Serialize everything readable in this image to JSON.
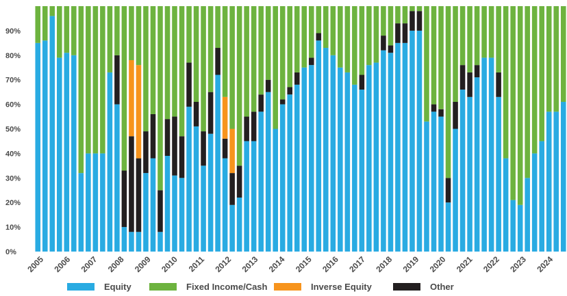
{
  "chart_data": {
    "type": "bar",
    "stacked": true,
    "ylim": [
      0,
      100
    ],
    "y_ticks": [
      0,
      10,
      20,
      30,
      40,
      50,
      60,
      70,
      80,
      90
    ],
    "y_tick_labels": [
      "0%",
      "10%",
      "20%",
      "30%",
      "40%",
      "50%",
      "60%",
      "70%",
      "80%",
      "90%"
    ],
    "x_tick_labels": [
      "2005",
      "2006",
      "2007",
      "2008",
      "2009",
      "2010",
      "2011",
      "2012",
      "2013",
      "2014",
      "2015",
      "2016",
      "2017",
      "2018",
      "2019",
      "2020",
      "2021",
      "2022",
      "2023",
      "2024"
    ],
    "grid": false,
    "legend_placement": "bottom",
    "colors": {
      "equity": "#29abe2",
      "fixed_income": "#6db33f",
      "inverse_equity": "#f7941d",
      "other": "#231f20"
    },
    "series": [
      {
        "name": "Equity",
        "color": "#29abe2",
        "values": [
          85,
          86,
          96,
          79,
          81,
          80,
          32,
          40,
          40,
          40,
          73,
          60,
          10,
          8,
          8,
          32,
          38,
          8,
          39,
          31,
          30,
          59,
          51,
          35,
          48,
          72,
          38,
          19,
          22,
          45,
          45,
          57,
          65,
          50,
          60,
          64,
          68,
          75,
          76,
          86,
          83,
          80,
          75,
          73,
          68,
          66,
          76,
          77,
          82,
          81,
          85,
          85,
          90,
          90,
          53,
          57,
          55,
          20,
          50,
          66,
          63,
          71,
          79,
          79,
          63,
          38,
          21,
          19,
          30,
          40,
          45,
          57,
          57,
          61
        ]
      },
      {
        "name": "Other",
        "color": "#231f20",
        "values": [
          0,
          0,
          0,
          0,
          0,
          0,
          0,
          0,
          0,
          0,
          0,
          20,
          23,
          39,
          30,
          17,
          18,
          17,
          15,
          24,
          17,
          18,
          10,
          14,
          17,
          11,
          8,
          13,
          13,
          10,
          12,
          7,
          5,
          0,
          2,
          3,
          5,
          0,
          3,
          3,
          0,
          0,
          0,
          0,
          0,
          6,
          0,
          0,
          6,
          3,
          8,
          8,
          8,
          8,
          0,
          3,
          3,
          10,
          11,
          10,
          10,
          5,
          0,
          0,
          10,
          0,
          0,
          0,
          0,
          0,
          0,
          0,
          0,
          0
        ]
      },
      {
        "name": "Inverse Equity",
        "color": "#f7941d",
        "values": [
          0,
          0,
          0,
          0,
          0,
          0,
          0,
          0,
          0,
          0,
          0,
          0,
          0,
          31,
          38,
          0,
          0,
          0,
          0,
          0,
          0,
          0,
          0,
          0,
          0,
          0,
          17,
          18,
          0,
          0,
          0,
          0,
          0,
          0,
          0,
          0,
          0,
          0,
          0,
          0,
          0,
          0,
          0,
          0,
          0,
          0,
          0,
          0,
          0,
          0,
          0,
          0,
          0,
          0,
          0,
          0,
          0,
          0,
          0,
          0,
          0,
          0,
          0,
          0,
          0,
          0,
          0,
          0,
          0,
          0,
          0,
          0,
          0,
          0
        ]
      },
      {
        "name": "Fixed Income/Cash",
        "color": "#6db33f",
        "values": [
          15,
          14,
          4,
          21,
          19,
          20,
          68,
          60,
          60,
          60,
          27,
          20,
          67,
          22,
          24,
          51,
          44,
          75,
          46,
          45,
          53,
          23,
          39,
          51,
          35,
          17,
          37,
          50,
          65,
          45,
          43,
          36,
          30,
          50,
          38,
          33,
          27,
          25,
          21,
          11,
          17,
          20,
          25,
          27,
          32,
          28,
          24,
          23,
          12,
          16,
          7,
          7,
          2,
          2,
          47,
          40,
          42,
          70,
          39,
          24,
          27,
          24,
          21,
          21,
          27,
          62,
          79,
          81,
          70,
          60,
          55,
          43,
          43,
          39
        ]
      }
    ],
    "legend": [
      {
        "name": "Equity",
        "color": "#29abe2"
      },
      {
        "name": "Fixed Income/Cash",
        "color": "#6db33f"
      },
      {
        "name": "Inverse Equity",
        "color": "#f7941d"
      },
      {
        "name": "Other",
        "color": "#231f20"
      }
    ]
  }
}
